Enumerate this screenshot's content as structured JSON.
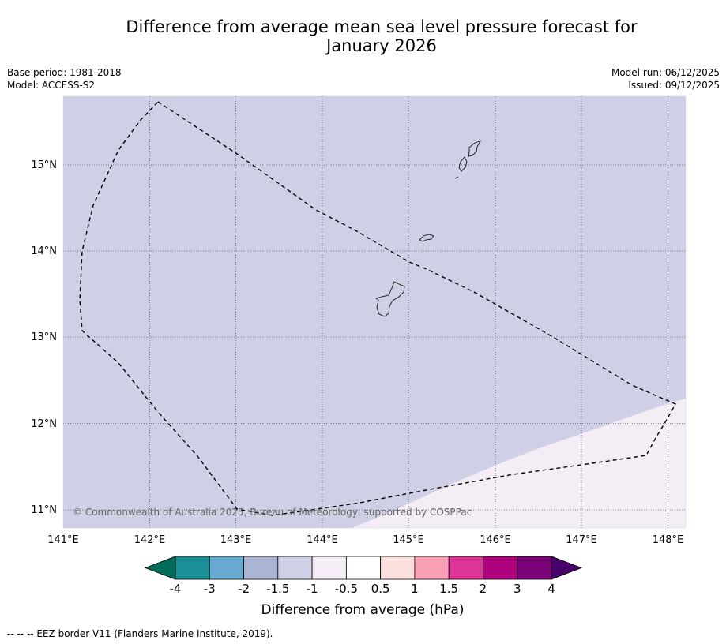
{
  "title": {
    "line1": "Difference from average mean sea level pressure forecast for",
    "line2": "January 2026"
  },
  "meta": {
    "base_period": "Base period: 1981-2018",
    "model": "Model: ACCESS-S2",
    "model_run": "Model run: 06/12/2025",
    "issued": "Issued: 09/12/2025"
  },
  "map": {
    "lon_labels": [
      "141°E",
      "142°E",
      "143°E",
      "144°E",
      "145°E",
      "146°E",
      "147°E",
      "148°E"
    ],
    "lat_labels": [
      "15°N",
      "14°N",
      "13°N",
      "12°N",
      "11°N"
    ],
    "copyright": "© Commonwealth of Australia 2025, Bureau of Meteorology, supported by COSPPac",
    "fill_colors": {
      "range_-1.5_-1": "#cfd0e5",
      "range_-1_-0.5": "#f5edf6"
    }
  },
  "colorbar": {
    "labels": [
      "-4",
      "-3",
      "-2",
      "-1.5",
      "-1",
      "-0.5",
      "0.5",
      "1",
      "1.5",
      "2",
      "3",
      "4"
    ],
    "colors": [
      "#1a9096",
      "#67a9d0",
      "#abb4d3",
      "#cfd0e5",
      "#f5edf6",
      "#ffffff",
      "#fde0dd",
      "#fa9fb5",
      "#dd3497",
      "#ae017e",
      "#7a0177"
    ],
    "extend_min_color": "#016c59",
    "extend_max_color": "#49006a",
    "title": "Difference from average (hPa)"
  },
  "footer": {
    "legend_text": "--  --  -- EEZ border V11 (Flanders Marine Institute, 2019)."
  }
}
